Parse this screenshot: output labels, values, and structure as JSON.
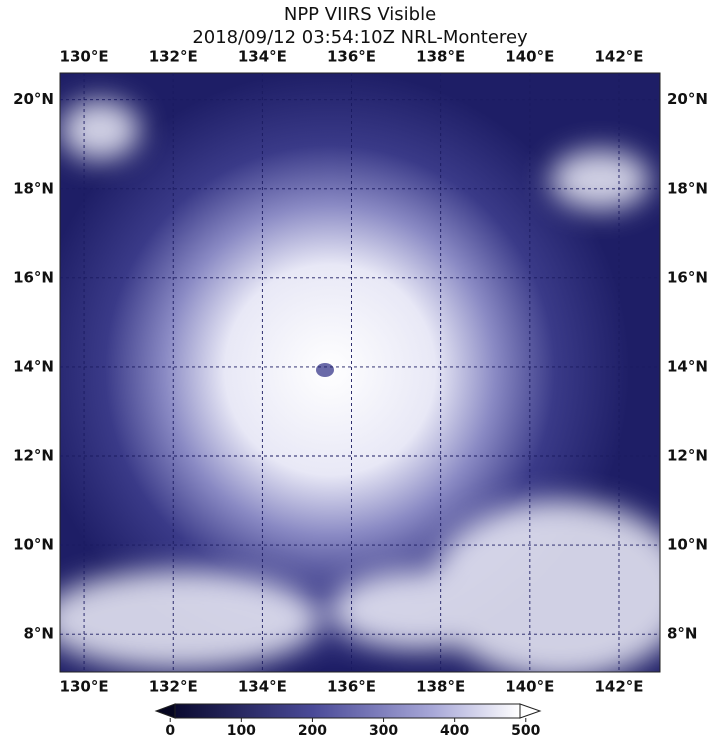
{
  "header": {
    "title": "NPP VIIRS Visible",
    "subtitle": "2018/09/12 03:54:10Z NRL-Monterey"
  },
  "map": {
    "xlim": [
      129.46,
      142.92
    ],
    "ylim": [
      7.15,
      20.6
    ],
    "xticks": [
      {
        "value": 130,
        "label": "130°E"
      },
      {
        "value": 132,
        "label": "132°E"
      },
      {
        "value": 134,
        "label": "134°E"
      },
      {
        "value": 136,
        "label": "136°E"
      },
      {
        "value": 138,
        "label": "138°E"
      },
      {
        "value": 140,
        "label": "140°E"
      },
      {
        "value": 142,
        "label": "142°E"
      }
    ],
    "yticks": [
      {
        "value": 8,
        "label": "8°N"
      },
      {
        "value": 10,
        "label": "10°N"
      },
      {
        "value": 12,
        "label": "12°N"
      },
      {
        "value": 14,
        "label": "14°N"
      },
      {
        "value": 16,
        "label": "16°N"
      },
      {
        "value": 18,
        "label": "18°N"
      },
      {
        "value": 20,
        "label": "20°N"
      }
    ]
  },
  "colorbar": {
    "lim": [
      -20,
      520
    ],
    "ticks": [
      0,
      100,
      200,
      300,
      400,
      500
    ]
  }
}
